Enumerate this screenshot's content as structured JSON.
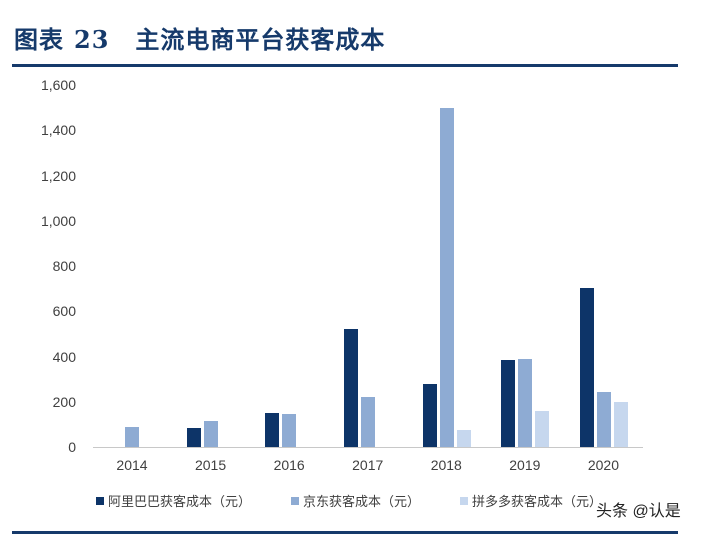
{
  "header": {
    "figure_label": "图表",
    "figure_number": "23",
    "title": "主流电商平台获客成本"
  },
  "watermark": "头条 @认是",
  "colors": {
    "alibaba": "#0d3468",
    "jd": "#8eabd3",
    "pdd": "#c6d7ee",
    "rule": "#163a6b"
  },
  "chart_data": {
    "type": "bar",
    "title": "主流电商平台获客成本",
    "xlabel": "",
    "ylabel": "",
    "ylim": [
      0,
      1600
    ],
    "yticks": [
      "0",
      "200",
      "400",
      "600",
      "800",
      "1,000",
      "1,200",
      "1,400",
      "1,600"
    ],
    "grid": false,
    "legend_position": "bottom",
    "categories": [
      "2014",
      "2015",
      "2016",
      "2017",
      "2018",
      "2019",
      "2020"
    ],
    "series": [
      {
        "name": "阿里巴巴获客成本（元）",
        "color": "#0d3468",
        "values": [
          null,
          84,
          150,
          521,
          278,
          384,
          703
        ]
      },
      {
        "name": "京东获客成本（元）",
        "color": "#8eabd3",
        "values": [
          88,
          115,
          146,
          221,
          1500,
          389,
          243
        ]
      },
      {
        "name": "拼多多获客成本（元）",
        "color": "#c6d7ee",
        "values": [
          null,
          null,
          null,
          null,
          75,
          159,
          199
        ]
      }
    ]
  }
}
